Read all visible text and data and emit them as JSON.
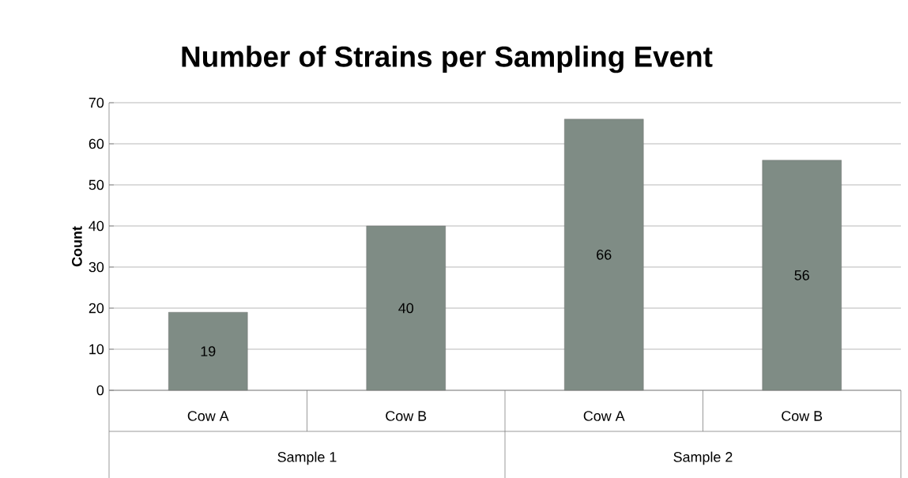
{
  "chart_data": {
    "type": "bar",
    "title": "Number of Strains per Sampling Event",
    "ylabel": "Count",
    "categories": [
      "Cow A",
      "Cow B",
      "Cow A",
      "Cow B"
    ],
    "values": [
      19,
      40,
      66,
      56
    ],
    "color": "#7f8c85",
    "data_labels": true,
    "ylim": [
      0,
      70
    ],
    "yticks": [
      0,
      10,
      20,
      30,
      40,
      50,
      60,
      70
    ],
    "grid": "y",
    "annotations": [
      "Sample 1",
      "Sample 2"
    ]
  }
}
